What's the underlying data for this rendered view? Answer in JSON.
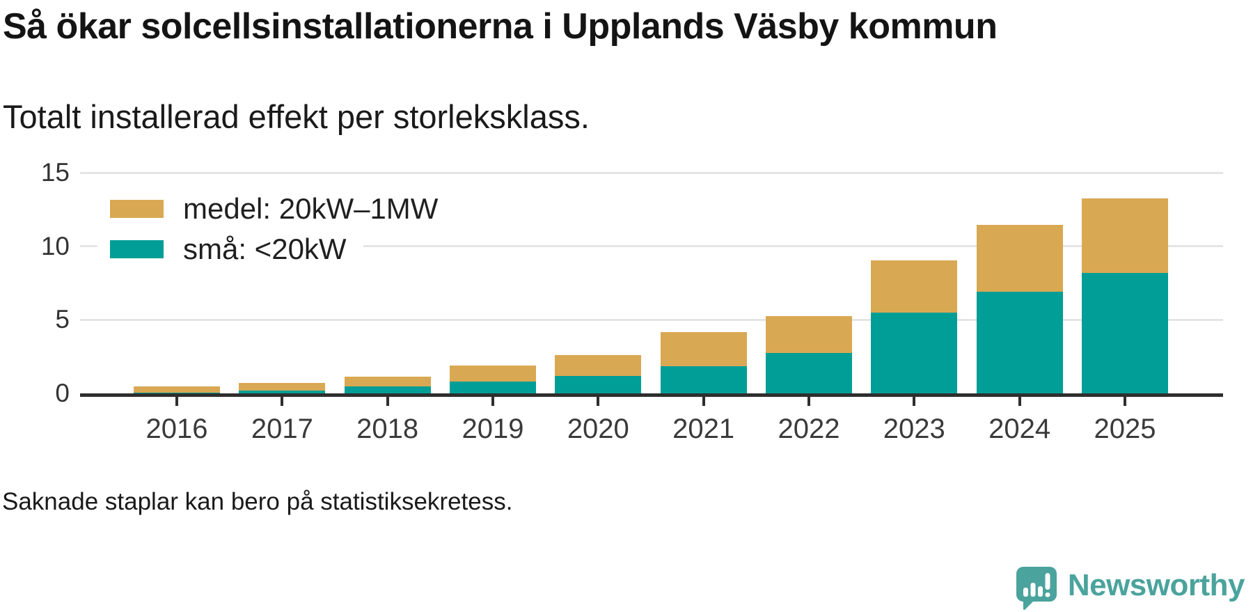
{
  "header": {
    "title": "Så ökar solcellsinstallationerna i Upplands Väsby kommun",
    "subtitle": "Totalt installerad effekt per storleksklass."
  },
  "legend": [
    {
      "label": "medel: 20kW–1MW",
      "color": "#d9a853"
    },
    {
      "label": "små: <20kW",
      "color": "#009e96"
    }
  ],
  "colors": {
    "medel": "#d9a853",
    "sma": "#009e96",
    "axis": "#2e2e2e",
    "grid": "#e5e5e5",
    "brand_teal": "#4aa39c"
  },
  "chart_data": {
    "type": "bar",
    "stacked": true,
    "title": "Så ökar solcellsinstallationerna i Upplands Väsby kommun",
    "subtitle": "Totalt installerad effekt per storleksklass.",
    "categories": [
      "2016",
      "2017",
      "2018",
      "2019",
      "2020",
      "2021",
      "2022",
      "2023",
      "2024",
      "2025"
    ],
    "series": [
      {
        "name": "små: <20kW",
        "color": "#009e96",
        "values": [
          0.05,
          0.2,
          0.45,
          0.8,
          1.2,
          1.85,
          2.75,
          5.5,
          6.9,
          8.2
        ]
      },
      {
        "name": "medel: 20kW–1MW",
        "color": "#d9a853",
        "values": [
          0.4,
          0.5,
          0.7,
          1.1,
          1.4,
          2.3,
          2.5,
          3.55,
          4.55,
          5.05
        ]
      }
    ],
    "totals": [
      0.45,
      0.7,
      1.15,
      1.9,
      2.6,
      4.15,
      5.25,
      9.05,
      11.45,
      13.25
    ],
    "xlabel": "",
    "ylabel": "",
    "ylim": [
      0,
      15
    ],
    "yticks": [
      0,
      5,
      10,
      15
    ],
    "grid": "horizontal",
    "legend_position": "top-left"
  },
  "footer": {
    "note": "Saknade staplar kan bero på statistiksekretess.",
    "brand": "Newsworthy"
  }
}
